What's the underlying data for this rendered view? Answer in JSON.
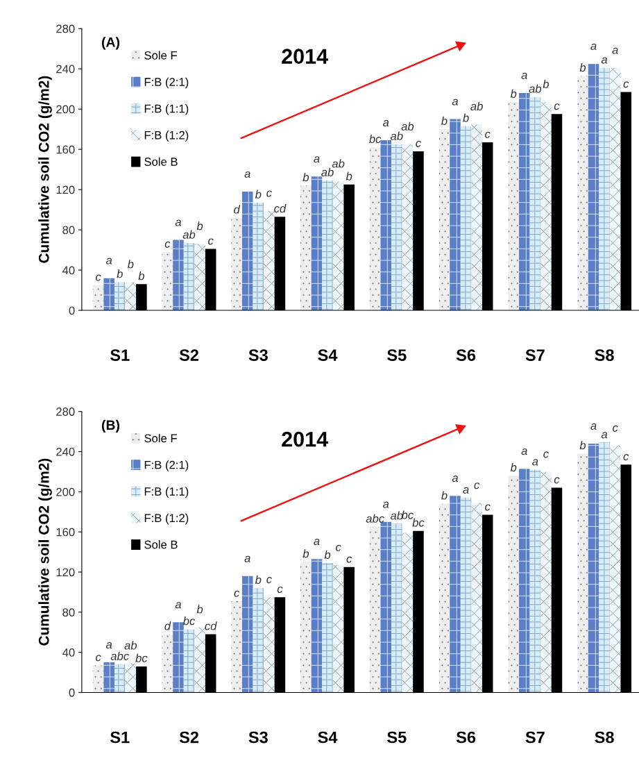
{
  "chart_data": [
    {
      "type": "bar",
      "annotations": [
        "(A)",
        "2014"
      ],
      "ylabel": "Cumulative soil CO2 (g/m2)",
      "ylim": [
        0,
        280
      ],
      "yticks": [
        0,
        40,
        80,
        120,
        160,
        200,
        240,
        280
      ],
      "legend": "top left",
      "categories": [
        "S1",
        "S2",
        "S3",
        "S4",
        "S5",
        "S6",
        "S7",
        "S8"
      ],
      "series": [
        {
          "name": "Sole F",
          "color": "#eeeeee",
          "values": [
            25,
            58,
            92,
            124,
            162,
            180,
            207,
            233
          ],
          "value_labels": [
            "c",
            "c",
            "d",
            "b",
            "bc",
            "b",
            "b",
            "b"
          ]
        },
        {
          "name": "F:B (2:1)",
          "color": "#5b7fc7",
          "values": [
            32,
            70,
            118,
            133,
            169,
            190,
            216,
            245
          ],
          "value_labels": [
            "a",
            "a",
            "a",
            "a",
            "a",
            "a",
            "a",
            "a"
          ]
        },
        {
          "name": "F:B (1:1)",
          "color": "#d6ecf7",
          "values": [
            28,
            67,
            107,
            129,
            165,
            183,
            212,
            241
          ],
          "value_labels": [
            "b",
            "ab",
            "b",
            "ab",
            "ab",
            "b",
            "ab",
            "a"
          ]
        },
        {
          "name": "F:B (1:2)",
          "color": "#eef6fa",
          "values": [
            28,
            66,
            99,
            128,
            165,
            185,
            207,
            241
          ],
          "value_labels": [
            "b",
            "b",
            "c",
            "ab",
            "ab",
            "ab",
            "b",
            "a"
          ]
        },
        {
          "name": "Sole B",
          "color": "#000000",
          "values": [
            26,
            61,
            93,
            125,
            158,
            167,
            195,
            217
          ],
          "value_labels": [
            "b",
            "c",
            "cd",
            "b",
            "c",
            "c",
            "c",
            "c"
          ]
        }
      ]
    },
    {
      "type": "bar",
      "annotations": [
        "(B)",
        "2014"
      ],
      "ylabel": "Cumulative soil CO2 (g/m2)",
      "ylim": [
        0,
        280
      ],
      "yticks": [
        0,
        40,
        80,
        120,
        160,
        200,
        240,
        280
      ],
      "legend": "top left",
      "categories": [
        "S1",
        "S2",
        "S3",
        "S4",
        "S5",
        "S6",
        "S7",
        "S8"
      ],
      "series": [
        {
          "name": "Sole F",
          "color": "#eeeeee",
          "values": [
            27,
            58,
            91,
            130,
            165,
            188,
            216,
            238
          ],
          "value_labels": [
            "c",
            "d",
            "c",
            "b",
            "abc",
            "b",
            "b",
            "b"
          ]
        },
        {
          "name": "F:B (2:1)",
          "color": "#5b7fc7",
          "values": [
            30,
            70,
            116,
            133,
            170,
            196,
            223,
            248
          ],
          "value_labels": [
            "a",
            "a",
            "a",
            "a",
            "a",
            "a",
            "a",
            "a"
          ]
        },
        {
          "name": "F:B (1:1)",
          "color": "#d6ecf7",
          "values": [
            28,
            63,
            104,
            129,
            168,
            194,
            222,
            249
          ],
          "value_labels": [
            "abc",
            "bc",
            "b",
            "b",
            "ab",
            "a",
            "a",
            "a"
          ]
        },
        {
          "name": "F:B (1:2)",
          "color": "#eef6fa",
          "values": [
            29,
            65,
            95,
            127,
            159,
            189,
            220,
            246
          ],
          "value_labels": [
            "ab",
            "b",
            "c",
            "c",
            "bc",
            "c",
            "c",
            "c"
          ]
        },
        {
          "name": "Sole B",
          "color": "#000000",
          "values": [
            26,
            58,
            95,
            125,
            161,
            177,
            204,
            227
          ],
          "value_labels": [
            "bc",
            "cd",
            "c",
            "c",
            "bc",
            "c",
            "c",
            "c"
          ]
        }
      ]
    }
  ]
}
